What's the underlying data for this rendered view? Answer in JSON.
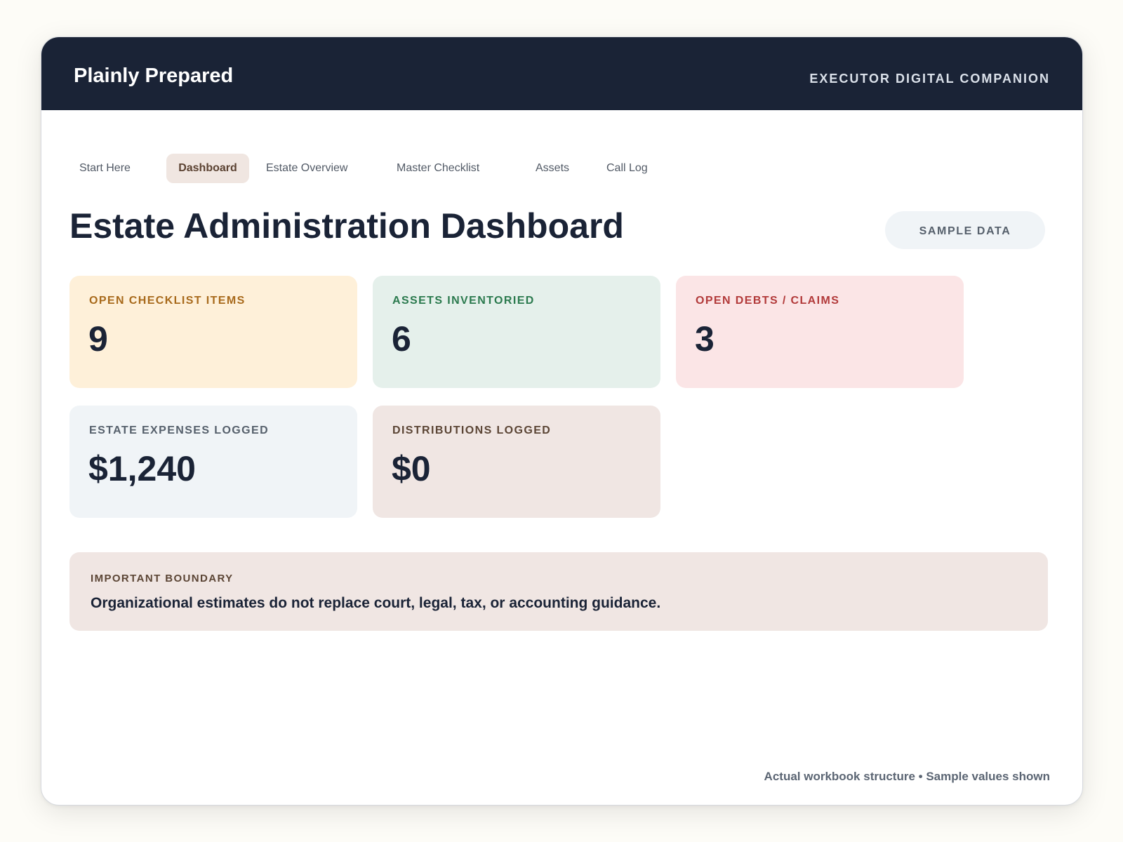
{
  "header": {
    "brand": "Plainly Prepared",
    "tagline": "EXECUTOR DIGITAL COMPANION"
  },
  "tabs": [
    {
      "label": "Start Here",
      "active": false
    },
    {
      "label": "Dashboard",
      "active": true
    },
    {
      "label": "Estate Overview",
      "active": false
    },
    {
      "label": "Master Checklist",
      "active": false
    },
    {
      "label": "Assets",
      "active": false
    },
    {
      "label": "Call Log",
      "active": false
    }
  ],
  "page": {
    "title": "Estate Administration Dashboard",
    "badge": "SAMPLE DATA"
  },
  "cards": [
    {
      "label": "OPEN CHECKLIST ITEMS",
      "value": "9",
      "bg": "#fef0d9",
      "label_color": "#a86a1c"
    },
    {
      "label": "ASSETS INVENTORIED",
      "value": "6",
      "bg": "#e5f0eb",
      "label_color": "#2b7a4e"
    },
    {
      "label": "OPEN DEBTS / CLAIMS",
      "value": "3",
      "bg": "#fbe5e6",
      "label_color": "#b23a3a"
    },
    {
      "label": "ESTATE EXPENSES LOGGED",
      "value": "$1,240",
      "bg": "#f0f4f7",
      "label_color": "#56606c"
    },
    {
      "label": "DISTRIBUTIONS LOGGED",
      "value": "$0",
      "bg": "#f0e6e3",
      "label_color": "#5b4535"
    }
  ],
  "notice": {
    "title": "IMPORTANT BOUNDARY",
    "text": "Organizational estimates do not replace court, legal, tax, or accounting guidance."
  },
  "footer": {
    "note": "Actual workbook structure • Sample values shown"
  }
}
